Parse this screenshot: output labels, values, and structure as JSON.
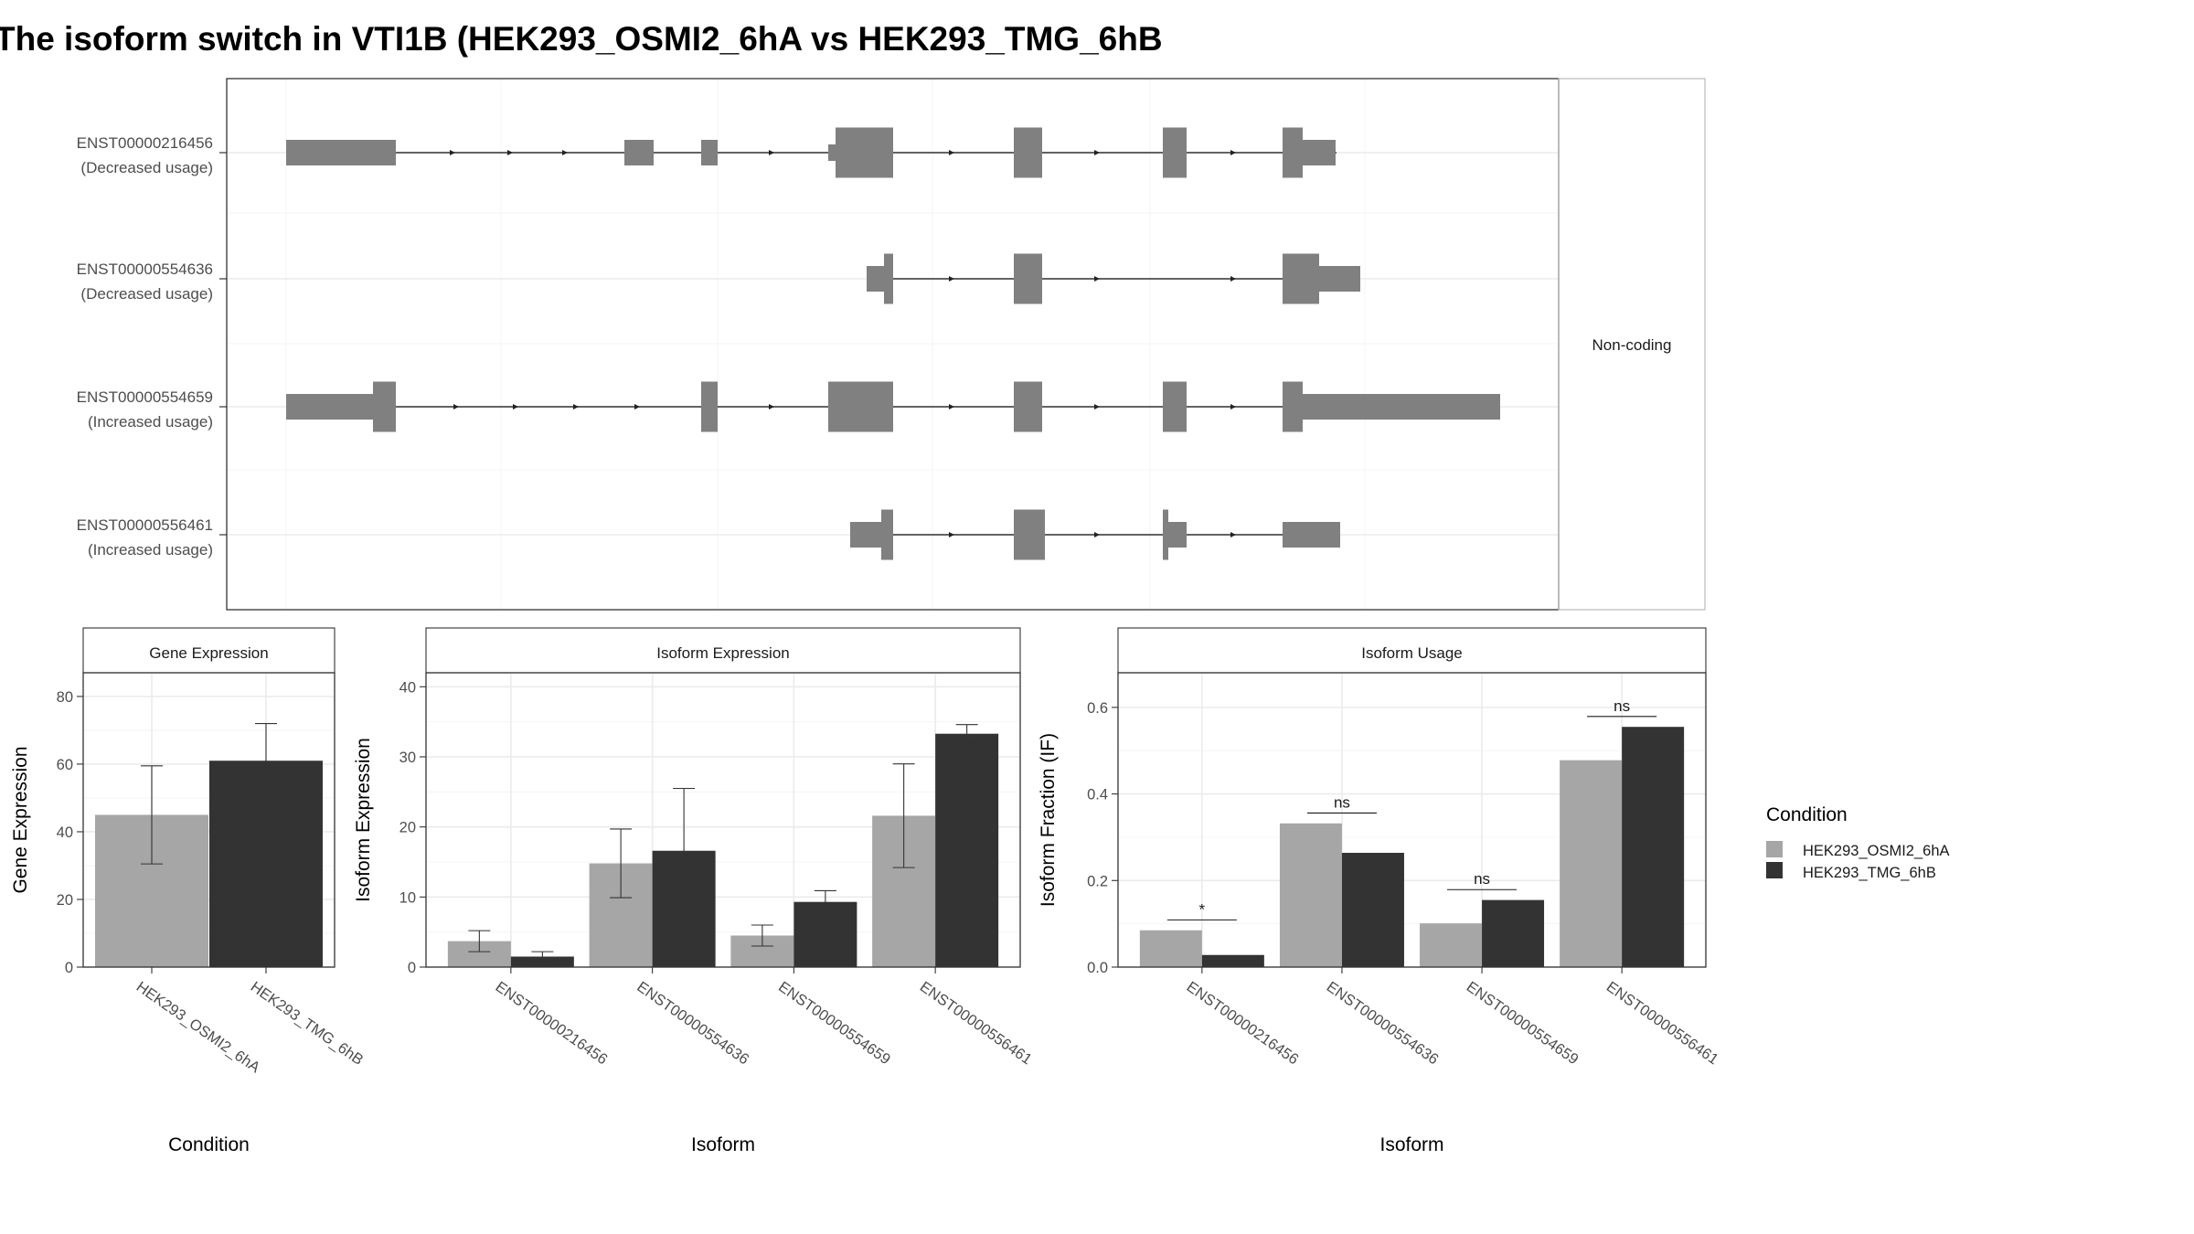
{
  "title": "The isoform switch in VTI1B (HEK293_OSMI2_6hA vs HEK293_TMG_6hB",
  "colors": {
    "condA": "#a6a6a6",
    "condB": "#333333",
    "exon": "#808080"
  },
  "structure": {
    "facet_label": "Non-coding",
    "transcripts": [
      {
        "id": "ENST00000216456",
        "usage": "(Decreased usage)"
      },
      {
        "id": "ENST00000554636",
        "usage": "(Decreased usage)"
      },
      {
        "id": "ENST00000554659",
        "usage": "(Increased usage)"
      },
      {
        "id": "ENST00000556461",
        "usage": "(Increased usage)"
      }
    ]
  },
  "legend": {
    "title": "Condition",
    "items": [
      {
        "label": "HEK293_OSMI2_6hA",
        "color": "#a6a6a6"
      },
      {
        "label": "HEK293_TMG_6hB",
        "color": "#333333"
      }
    ]
  },
  "chart_data": [
    {
      "type": "bar",
      "title": "Gene Expression",
      "xlabel": "Condition",
      "ylabel": "Gene Expression",
      "ylim": [
        0,
        87
      ],
      "yticks": [
        0,
        20,
        40,
        60,
        80
      ],
      "categories": [
        "HEK293_OSMI2_6hA",
        "HEK293_TMG_6hB"
      ],
      "values": [
        45,
        61
      ],
      "error_low": [
        30.5,
        50.5
      ],
      "error_high": [
        59.5,
        72
      ]
    },
    {
      "type": "bar",
      "title": "Isoform Expression",
      "xlabel": "Isoform",
      "ylabel": "Isoform Expression",
      "ylim": [
        0,
        42
      ],
      "yticks": [
        0,
        10,
        20,
        30,
        40
      ],
      "categories": [
        "ENST00000216456",
        "ENST00000554636",
        "ENST00000554659",
        "ENST00000556461"
      ],
      "series": [
        {
          "name": "HEK293_OSMI2_6hA",
          "values": [
            3.7,
            14.8,
            4.5,
            21.6
          ],
          "error_low": [
            2.2,
            9.9,
            3.0,
            14.2
          ],
          "error_high": [
            5.2,
            19.7,
            6.0,
            29.0
          ]
        },
        {
          "name": "HEK293_TMG_6hB",
          "values": [
            1.5,
            16.6,
            9.3,
            33.3
          ],
          "error_low": [
            0.8,
            7.7,
            7.7,
            32.0
          ],
          "error_high": [
            2.2,
            25.5,
            10.9,
            34.6
          ]
        }
      ]
    },
    {
      "type": "bar",
      "title": "Isoform Usage",
      "xlabel": "Isoform",
      "ylabel": "Isoform Fraction (IF)",
      "ylim": [
        0,
        0.68
      ],
      "yticks": [
        0.0,
        0.2,
        0.4,
        0.6
      ],
      "ytick_labels": [
        "0.0",
        "0.2",
        "0.4",
        "0.6"
      ],
      "categories": [
        "ENST00000216456",
        "ENST00000554636",
        "ENST00000554659",
        "ENST00000556461"
      ],
      "series": [
        {
          "name": "HEK293_OSMI2_6hA",
          "values": [
            0.085,
            0.332,
            0.101,
            0.478
          ]
        },
        {
          "name": "HEK293_TMG_6hB",
          "values": [
            0.028,
            0.264,
            0.155,
            0.555
          ]
        }
      ],
      "significance": [
        "*",
        "ns",
        "ns",
        "ns"
      ]
    }
  ]
}
